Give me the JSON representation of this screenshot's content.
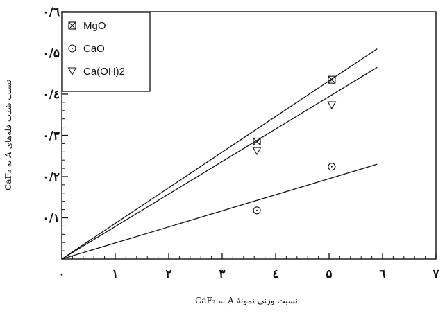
{
  "chart_data": {
    "type": "scatter",
    "xlabel": "نسبت وزنی نمونهٔ A به CaF₂",
    "ylabel": "نسبت شدت قله‌های A به CaF₂",
    "xlim": [
      0,
      7
    ],
    "ylim": [
      0,
      0.6
    ],
    "x_ticks": [
      {
        "value": 0,
        "label": "۰"
      },
      {
        "value": 1,
        "label": "۱"
      },
      {
        "value": 2,
        "label": "۲"
      },
      {
        "value": 3,
        "label": "۳"
      },
      {
        "value": 4,
        "label": "٤"
      },
      {
        "value": 5,
        "label": "۵"
      },
      {
        "value": 6,
        "label": "٦"
      },
      {
        "value": 7,
        "label": "۷"
      }
    ],
    "y_ticks": [
      {
        "value": 0.1,
        "label": "۰/۱"
      },
      {
        "value": 0.2,
        "label": "۰/۲"
      },
      {
        "value": 0.3,
        "label": "۰/۳"
      },
      {
        "value": 0.4,
        "label": "۰/٤"
      },
      {
        "value": 0.5,
        "label": "۰/۵"
      },
      {
        "value": 0.6,
        "label": "۰/٦"
      }
    ],
    "legend_position": "top-left",
    "grid": false,
    "series": [
      {
        "name": "MgO",
        "marker": "boxed-x",
        "points": [
          [
            3.65,
            0.285
          ],
          [
            5.05,
            0.435
          ]
        ],
        "fit_line": [
          [
            0,
            0
          ],
          [
            5.9,
            0.51
          ]
        ]
      },
      {
        "name": "CaO",
        "marker": "circle",
        "points": [
          [
            3.65,
            0.118
          ],
          [
            5.05,
            0.224
          ]
        ],
        "fit_line": [
          [
            0,
            0
          ],
          [
            5.9,
            0.23
          ]
        ]
      },
      {
        "name": "Ca(OH)2",
        "marker": "triangle-down",
        "points": [
          [
            3.65,
            0.262
          ],
          [
            5.05,
            0.373
          ]
        ],
        "fit_line": [
          [
            0,
            0
          ],
          [
            5.9,
            0.465
          ]
        ]
      }
    ]
  }
}
